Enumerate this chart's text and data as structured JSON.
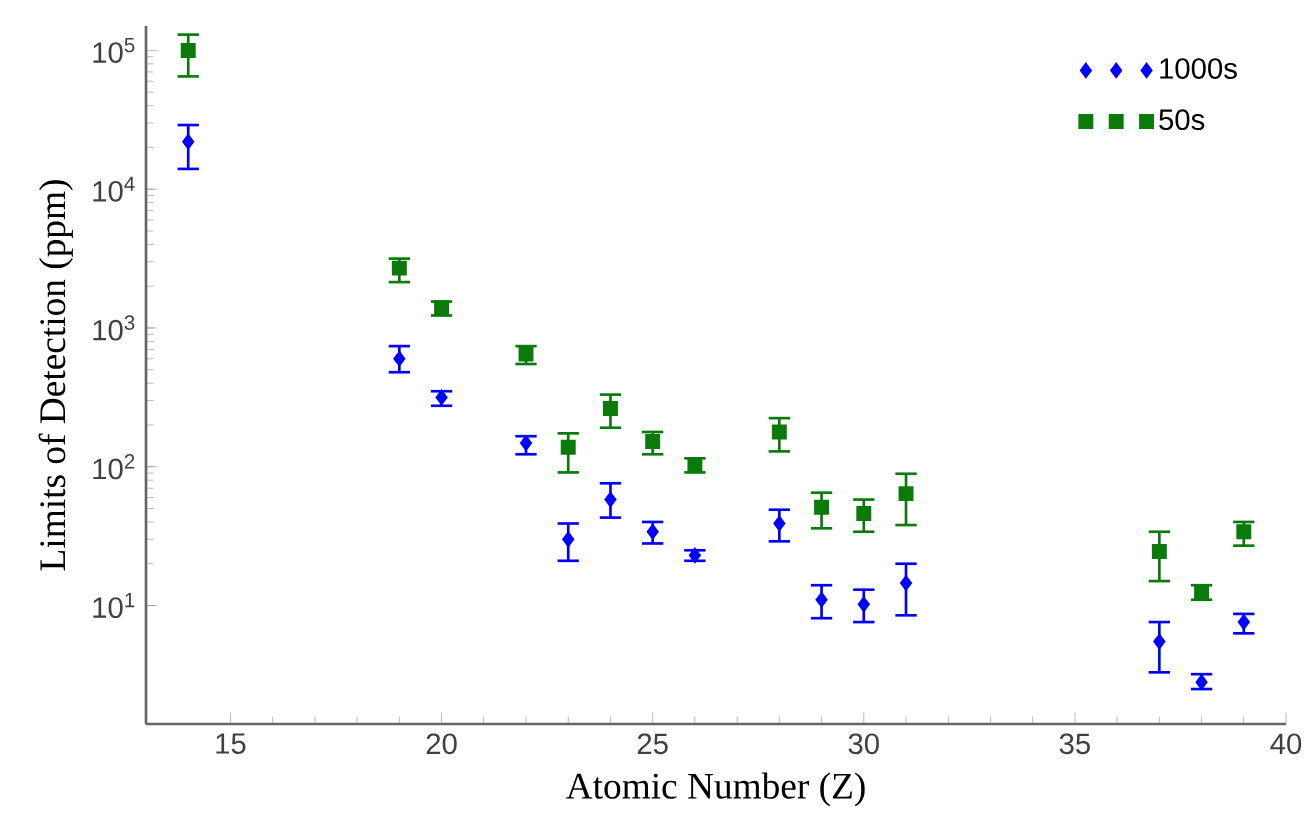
{
  "chart_data": {
    "type": "scatter",
    "xlabel": "Atomic Number (Z)",
    "ylabel": "Limits of Detection (ppm)",
    "log": "y",
    "xlim": [
      13,
      40
    ],
    "xticks": [
      15,
      20,
      25,
      30,
      35,
      40
    ],
    "ylim": [
      1.4,
      150000
    ],
    "yticks": [
      {
        "value": 10,
        "label": "10$^{1}$"
      },
      {
        "value": 100,
        "label": "10$^{2}$"
      },
      {
        "value": 1000,
        "label": "10$^{3}$"
      },
      {
        "value": 10000,
        "label": "10$^{4}$"
      },
      {
        "value": 100000,
        "label": "10$^{5}$"
      }
    ],
    "legend": "top right",
    "grid": false,
    "series": [
      {
        "name": "1000s",
        "color": "#0000ff",
        "marker": "diamond",
        "x": [
          14,
          19,
          20,
          22,
          23,
          24,
          25,
          26,
          28,
          29,
          30,
          31,
          37,
          38,
          39
        ],
        "values": [
          22000,
          600,
          316,
          148,
          30,
          58,
          34,
          23,
          39,
          11,
          10.2,
          14.5,
          5.5,
          2.8,
          7.6
        ],
        "errors": [
          [
            14000,
            29000
          ],
          [
            480,
            740
          ],
          [
            275,
            350
          ],
          [
            123,
            166
          ],
          [
            21,
            39
          ],
          [
            43,
            76
          ],
          [
            28,
            40
          ],
          [
            21,
            25
          ],
          [
            29,
            49
          ],
          [
            8.1,
            14
          ],
          [
            7.6,
            13
          ],
          [
            8.5,
            20
          ],
          [
            3.3,
            7.6
          ],
          [
            2.5,
            3.2
          ],
          [
            6.3,
            8.7
          ]
        ]
      },
      {
        "name": "50s",
        "color": "#0a7a0a",
        "marker": "square",
        "x": [
          14,
          19,
          20,
          22,
          23,
          24,
          25,
          26,
          28,
          29,
          30,
          31,
          37,
          38,
          39
        ],
        "values": [
          100000,
          2700,
          1400,
          650,
          138,
          263,
          152,
          103,
          178,
          51,
          46,
          64,
          24.5,
          12.6,
          34
        ],
        "errors": [
          [
            65000,
            130000
          ],
          [
            2140,
            3160
          ],
          [
            1230,
            1550
          ],
          [
            550,
            740
          ],
          [
            91,
            174
          ],
          [
            191,
            331
          ],
          [
            123,
            178
          ],
          [
            91,
            115
          ],
          [
            129,
            224
          ],
          [
            36,
            65
          ],
          [
            34,
            58
          ],
          [
            38,
            89
          ],
          [
            15,
            34
          ],
          [
            11,
            14
          ],
          [
            27,
            40
          ]
        ]
      }
    ]
  }
}
